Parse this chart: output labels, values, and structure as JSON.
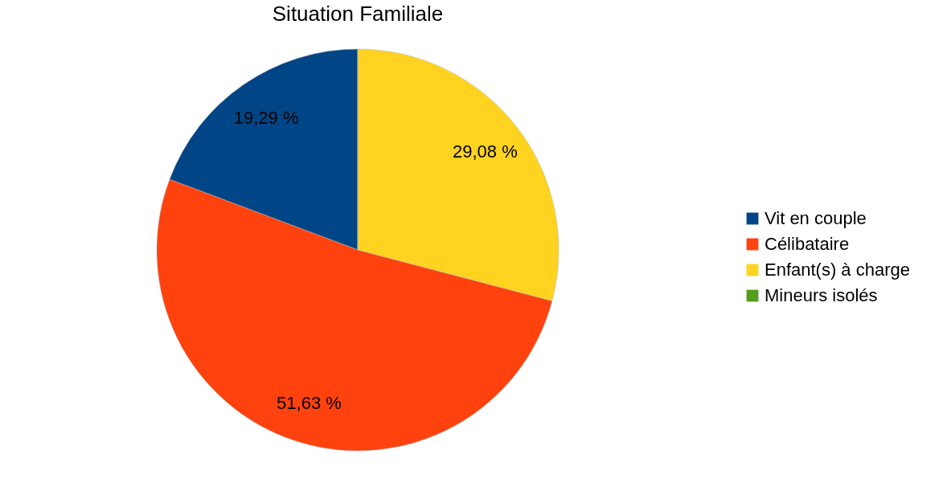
{
  "chart_data": {
    "type": "pie",
    "title": "Situation Familiale",
    "categories": [
      "Vit en couple",
      "Célibataire",
      "Enfant(s) à charge",
      "Mineurs isolés"
    ],
    "values": [
      19.29,
      51.63,
      29.08,
      0
    ],
    "value_labels": [
      "19,29 %",
      "51,63 %",
      "29,08 %",
      null
    ],
    "colors": [
      "#004586",
      "#ff420e",
      "#ffd320",
      "#579d1c"
    ],
    "legend": "right"
  }
}
